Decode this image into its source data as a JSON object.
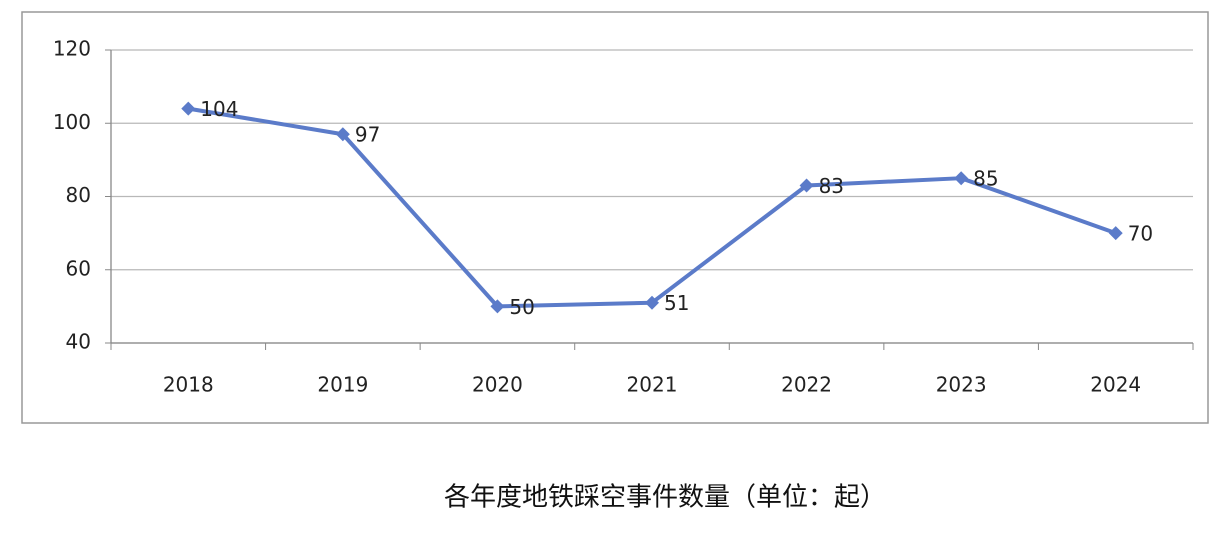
{
  "chart_data": {
    "type": "line",
    "title": "各年度地铁踩空事件数量（单位：起）",
    "categories": [
      "2018",
      "2019",
      "2020",
      "2021",
      "2022",
      "2023",
      "2024"
    ],
    "series": [
      {
        "name": "各年度地铁踩空事件数量",
        "color": "#5b7bc9",
        "values": [
          104,
          97,
          50,
          51,
          83,
          85,
          70
        ]
      }
    ],
    "ylim": [
      40,
      120
    ],
    "yticks": [
      40,
      60,
      80,
      100,
      120
    ],
    "grid": true,
    "data_labels": true,
    "legend": false
  }
}
